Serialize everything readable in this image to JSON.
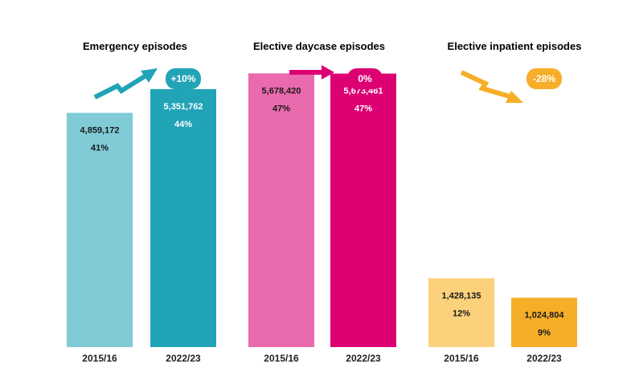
{
  "chart_data": [
    {
      "type": "bar",
      "title": "Emergency episodes",
      "categories": [
        "2015/16",
        "2022/23"
      ],
      "values": [
        4859172,
        5351762
      ],
      "value_labels": [
        "4,859,172",
        "5,351,762"
      ],
      "share_labels": [
        "41%",
        "44%"
      ],
      "change_label": "+10%",
      "trend": "up",
      "colors": [
        "#7fcbd6",
        "#22a4b7"
      ],
      "accent": "#22a4b7",
      "label_colors": [
        "#1a1a1a",
        "#ffffff"
      ],
      "ylim": [
        0,
        6000000
      ]
    },
    {
      "type": "bar",
      "title": "Elective daycase episodes",
      "categories": [
        "2015/16",
        "2022/23"
      ],
      "values": [
        5678420,
        5673461
      ],
      "value_labels": [
        "5,678,420",
        "5,673,461"
      ],
      "share_labels": [
        "47%",
        "47%"
      ],
      "change_label": "0%",
      "trend": "flat",
      "colors": [
        "#e96aad",
        "#dc0073"
      ],
      "accent": "#dc0073",
      "label_colors": [
        "#1a1a1a",
        "#ffffff"
      ],
      "ylim": [
        0,
        6000000
      ]
    },
    {
      "type": "bar",
      "title": "Elective inpatient episodes",
      "categories": [
        "2015/16",
        "2022/23"
      ],
      "values": [
        1428135,
        1024804
      ],
      "value_labels": [
        "1,428,135",
        "1,024,804"
      ],
      "share_labels": [
        "12%",
        "9%"
      ],
      "change_label": "-28%",
      "trend": "down",
      "colors": [
        "#fbd17c",
        "#f6ae28"
      ],
      "accent": "#f6ae28",
      "label_colors": [
        "#1a1a1a",
        "#1a1a1a"
      ],
      "ylim": [
        0,
        6000000
      ]
    }
  ]
}
